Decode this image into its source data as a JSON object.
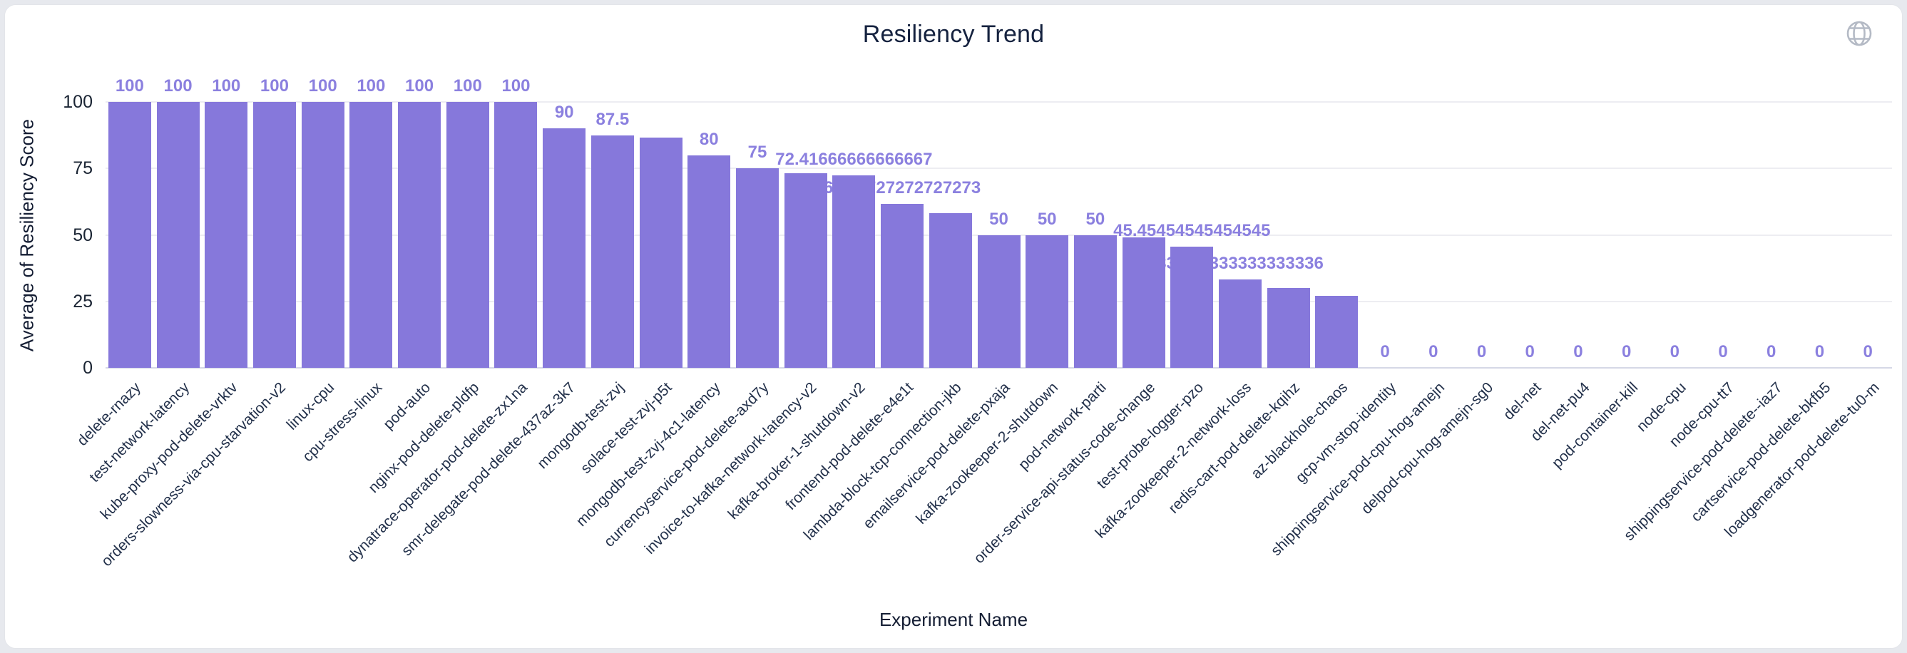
{
  "header": {
    "title": "Resiliency Trend"
  },
  "colors": {
    "bar": "#8678db",
    "value_label": "#8b80df",
    "gridline": "#ededf2",
    "axis_line": "#d5d8e6",
    "text_dark": "#15223f",
    "globe_icon": "#b4bac5",
    "card_background": "#ffffff",
    "page_background": "#e7e9ee"
  },
  "chart_data": {
    "type": "bar",
    "title": "Resiliency Trend",
    "xlabel": "Experiment Name",
    "ylabel": "Average of Resiliency Score",
    "ylim": [
      0,
      100
    ],
    "yticks": [
      0,
      25,
      50,
      75,
      100
    ],
    "grid": true,
    "legend": false,
    "categories": [
      "delete-rnazy",
      "test-network-latency",
      "kube-proxy-pod-delete-vrktv",
      "orders-slowness-via-cpu-starvation-v2",
      "linux-cpu",
      "cpu-stress-linux",
      "pod-auto",
      "nginx-pod-delete-pldfp",
      "dynatrace-operator-pod-delete-zx1na",
      "smr-delegate-pod-delete-437az-3k7",
      "mongodb-test-zvj",
      "solace-test-zvj-p5t",
      "mongodb-test-zvj-4c1-latency",
      "currencyservice-pod-delete-axd7y",
      "invoice-to-kafka-network-latency-v2",
      "kafka-broker-1-shutdown-v2",
      "frontend-pod-delete-e4e1t",
      "lambda-block-tcp-connection-jkb",
      "emailservice-pod-delete-pxaja",
      "kafka-zookeeper-2-shutdown",
      "pod-network-parti",
      "order-service-api-status-code-change",
      "test-probe-logger-pzo",
      "kafka-zookeeper-2-network-loss",
      "redis-cart-pod-delete-kqihz",
      "az-blackhole-chaos",
      "gcp-vm-stop-identity",
      "shippingservice-pod-cpu-hog-amejn",
      "delpod-cpu-hog-amejn-sg0",
      "del-net",
      "del-net-pu4",
      "pod-container-kill",
      "node-cpu",
      "node-cpu-tt7",
      "shippingservice-pod-delete--iaz7",
      "cartservice-pod-delete-bkfb5",
      "loadgenerator-pod-delete-tu0-m"
    ],
    "values": [
      100,
      100,
      100,
      100,
      100,
      100,
      100,
      100,
      100,
      90,
      87.5,
      86.5,
      80,
      75,
      73.3,
      72.41666666666667,
      61.72727272727273,
      58.2,
      50,
      50,
      50,
      49.1,
      45.45454545454545,
      33.333333333333336,
      30,
      27,
      0,
      0,
      0,
      0,
      0,
      0,
      0,
      0,
      0,
      0,
      0
    ],
    "value_labels": [
      "100",
      "100",
      "100",
      "100",
      "100",
      "100",
      "100",
      "100",
      "100",
      "90",
      "87.5",
      null,
      "80",
      "75",
      null,
      "72.41666666666667",
      "61.72727272727273",
      null,
      "50",
      "50",
      "50",
      null,
      "45.45454545454545",
      "33.333333333333336",
      null,
      null,
      "0",
      "0",
      "0",
      "0",
      "0",
      "0",
      "0",
      "0",
      "0",
      "0",
      "0"
    ]
  }
}
